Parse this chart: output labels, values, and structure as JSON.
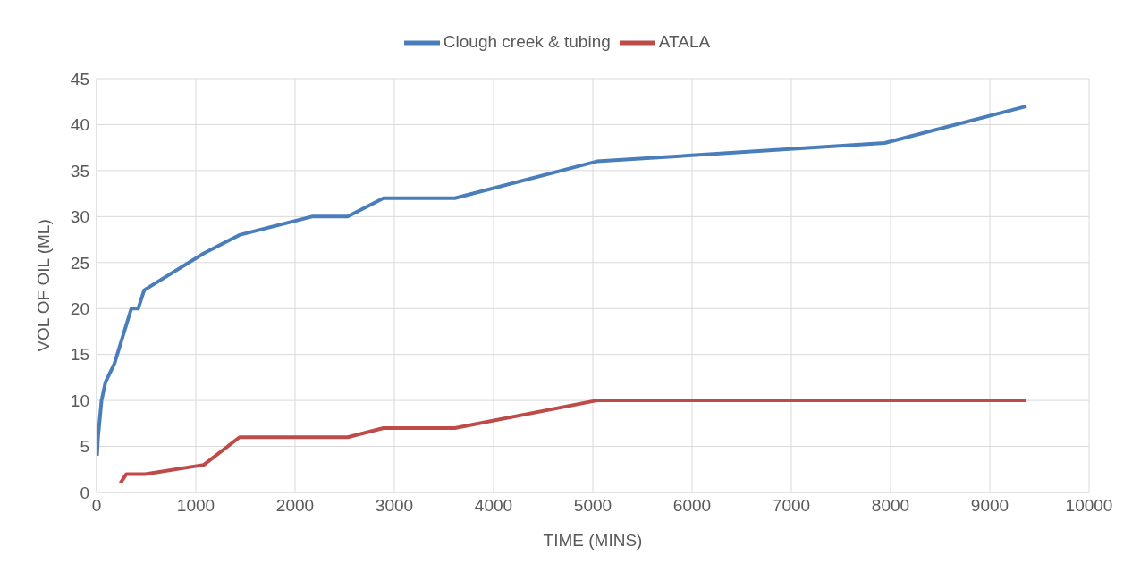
{
  "chart_data": {
    "type": "line",
    "xlabel": "TIME  (MINS)",
    "ylabel": "VOL OF OIL (ML)",
    "series": [
      {
        "name": "Clough creek & tubing",
        "color": "#4a7ebb",
        "x": [
          5,
          15,
          50,
          90,
          180,
          350,
          420,
          480,
          1080,
          1440,
          2170,
          2530,
          2890,
          3610,
          5040,
          7940,
          9370
        ],
        "values": [
          4,
          6,
          10,
          12,
          14,
          20,
          20,
          22,
          26,
          28,
          30,
          30,
          32,
          32,
          36,
          38,
          42
        ]
      },
      {
        "name": "ATALA",
        "color": "#be4b48",
        "x": [
          240,
          300,
          490,
          1080,
          1440,
          2530,
          2890,
          3610,
          5040,
          9370
        ],
        "values": [
          1,
          2,
          2,
          3,
          6,
          6,
          7,
          7,
          10,
          10
        ]
      }
    ],
    "xlim": [
      0,
      10000
    ],
    "xticks": [
      0,
      1000,
      2000,
      3000,
      4000,
      5000,
      6000,
      7000,
      8000,
      9000,
      10000
    ],
    "ylim": [
      0,
      45
    ],
    "yticks": [
      0,
      5,
      10,
      15,
      20,
      25,
      30,
      35,
      40,
      45
    ],
    "grid": true,
    "legend": "top",
    "marker": "none",
    "line_style": "solid"
  }
}
